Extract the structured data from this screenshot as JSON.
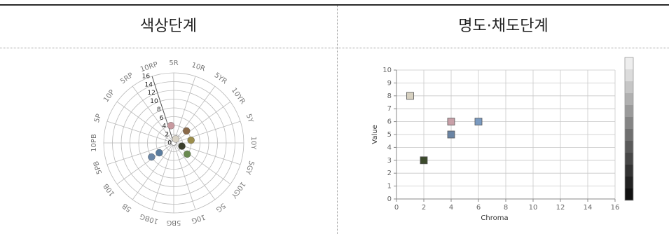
{
  "headers": {
    "hue": "색상단계",
    "value_chroma": "명도·채도단계"
  },
  "chart_data": [
    {
      "type": "polar-scatter",
      "hue_labels": [
        "5R",
        "10R",
        "5YR",
        "10YR",
        "5Y",
        "10Y",
        "5GY",
        "10GY",
        "5G",
        "10G",
        "5BG",
        "10BG",
        "5B",
        "10B",
        "5PB",
        "10PB",
        "5P",
        "10P",
        "5RP",
        "10RP"
      ],
      "radial_ticks": [
        0,
        2,
        4,
        6,
        8,
        10,
        12,
        14,
        16
      ],
      "radial_max": 16,
      "points": [
        {
          "hue_index": 19.5,
          "chroma": 4,
          "color": "#c89aa0"
        },
        {
          "hue_index": 2.6,
          "chroma": 4,
          "color": "#8a6a4a"
        },
        {
          "hue_index": 4.5,
          "chroma": 4,
          "color": "#9c8e4c"
        },
        {
          "hue_index": 6.2,
          "chroma": 2,
          "color": "#3a3e2c"
        },
        {
          "hue_index": 7.2,
          "chroma": 4,
          "color": "#6a8a50"
        },
        {
          "hue_index": 13.1,
          "chroma": 4,
          "color": "#5a7c9e"
        },
        {
          "hue_index": 13.2,
          "chroma": 6,
          "color": "#6a86a6"
        },
        {
          "hue_index": 1.5,
          "chroma": 1,
          "color": "#d8d2c4"
        }
      ]
    },
    {
      "type": "scatter",
      "xlabel": "Chroma",
      "ylabel": "Value",
      "xlim": [
        0,
        16
      ],
      "ylim": [
        0,
        10
      ],
      "xticks": [
        0,
        2,
        4,
        6,
        8,
        10,
        12,
        14,
        16
      ],
      "yticks": [
        0,
        1,
        2,
        3,
        4,
        5,
        6,
        7,
        8,
        9,
        10
      ],
      "grid": true,
      "points": [
        {
          "x": 1,
          "y": 8,
          "color": "#d6d0c0"
        },
        {
          "x": 2,
          "y": 3,
          "color": "#3c4a2c"
        },
        {
          "x": 4,
          "y": 6,
          "color": "#c8a0a8"
        },
        {
          "x": 4,
          "y": 5,
          "color": "#6a84a4"
        },
        {
          "x": 6,
          "y": 6,
          "color": "#7a9ac0"
        }
      ],
      "value_scale": [
        "#111111",
        "#222222",
        "#333333",
        "#474747",
        "#5a5a5a",
        "#6f6f6f",
        "#848484",
        "#9a9a9a",
        "#b0b0b0",
        "#c6c6c6",
        "#dcdcdc",
        "#eeeeee"
      ]
    }
  ]
}
